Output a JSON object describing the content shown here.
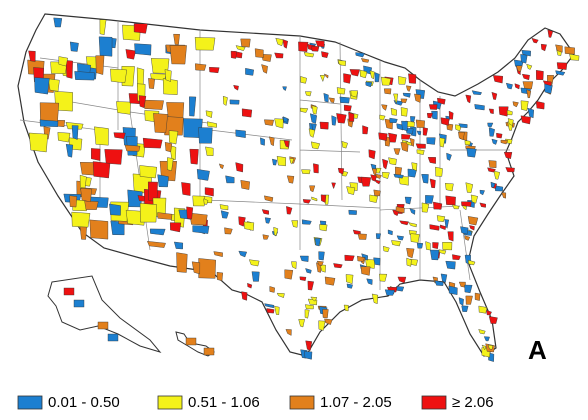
{
  "panel_label": "A",
  "legend": [
    {
      "label": "0.01 - 0.50",
      "color": "#1c7fd0"
    },
    {
      "label": "0.51 - 1.06",
      "color": "#f4f21a"
    },
    {
      "label": "1.07 - 2.05",
      "color": "#e2801c"
    },
    {
      "label": "≥ 2.06",
      "color": "#ee1111"
    }
  ]
}
